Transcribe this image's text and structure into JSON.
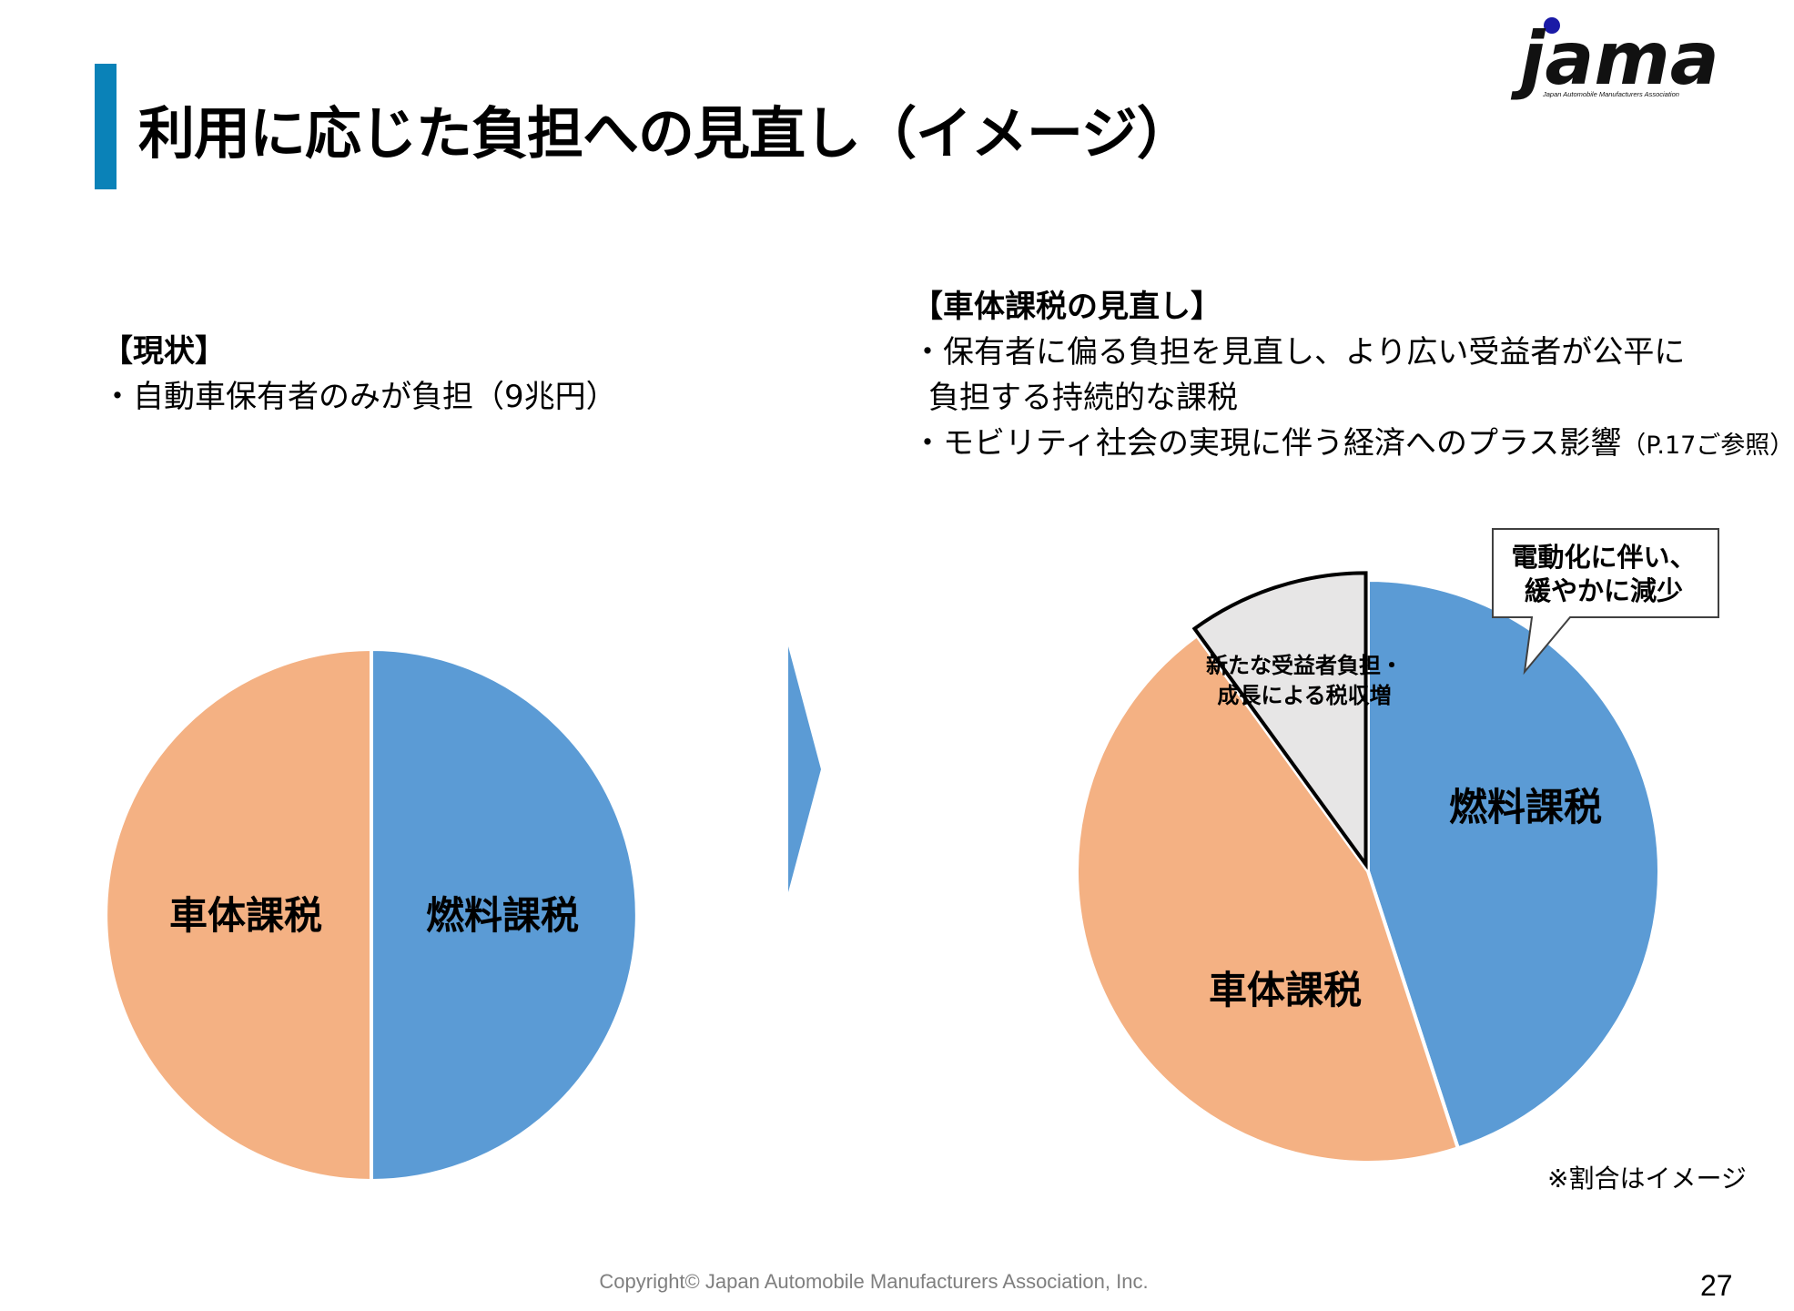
{
  "title": "利用に応じた負担への見直し（イメージ）",
  "logo": {
    "text": "jama",
    "subtext": "Japan Automobile Manufacturers Association",
    "accent": "#1a1aa6"
  },
  "current": {
    "heading": "【現状】",
    "bullets": [
      "・自動車保有者のみが負担（9兆円）"
    ]
  },
  "revision": {
    "heading": "【車体課税の見直し】",
    "bullet1_line1": "・保有者に偏る負担を見直し、より広い受益者が公平に",
    "bullet1_line2": "負担する持続的な課税",
    "bullet2_main": "・モビリティ社会の実現に伴う経済へのプラス影響",
    "bullet2_note": "（P.17ご参照）"
  },
  "callout": {
    "line1": "電動化に伴い、",
    "line2": "緩やかに減少"
  },
  "note": "※割合はイメージ",
  "footer": "Copyright© Japan Automobile Manufacturers Association, Inc.",
  "page_number": "27",
  "colors": {
    "fuel": "#5b9bd5",
    "vehicle": "#f4b183",
    "new": "#e7e6e6",
    "accent_bar": "#0a82b8",
    "arrow": "#5b9bd5"
  },
  "chart_data": [
    {
      "type": "pie",
      "title": "",
      "slices": [
        {
          "label": "燃料課税",
          "value": 50,
          "color": "#5b9bd5"
        },
        {
          "label": "車体課税",
          "value": 50,
          "color": "#f4b183"
        }
      ]
    },
    {
      "type": "pie",
      "title": "",
      "slices": [
        {
          "label": "燃料課税",
          "value": 45,
          "color": "#5b9bd5"
        },
        {
          "label": "車体課税",
          "value": 45,
          "color": "#f4b183"
        },
        {
          "label_line1": "新たな受益者負担・",
          "label_line2": "成長による税収増",
          "value": 10,
          "color": "#e7e6e6",
          "exploded": true
        }
      ]
    }
  ]
}
